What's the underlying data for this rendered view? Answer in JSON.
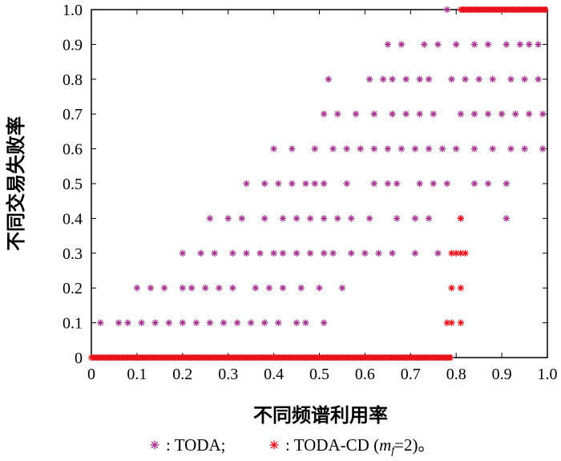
{
  "chart_data": {
    "type": "scatter",
    "xlabel": "不同频谱利用率",
    "ylabel": "不同交易失败率",
    "xlim": [
      0,
      1.0
    ],
    "ylim": [
      0,
      1.0
    ],
    "x_ticks": [
      "0",
      "0.1",
      "0.2",
      "0.3",
      "0.4",
      "0.5",
      "0.6",
      "0.7",
      "0.8",
      "0.9",
      "1.0"
    ],
    "y_ticks": [
      "0",
      "0.1",
      "0.2",
      "0.3",
      "0.4",
      "0.5",
      "0.6",
      "0.7",
      "0.8",
      "0.9",
      "1.0"
    ],
    "grid": false,
    "legend_position": "bottom",
    "series": [
      {
        "name": "TODA",
        "legend_label": ": TODA;",
        "marker": "asterisk",
        "color": "#a4348f",
        "points": [
          [
            0.78,
            1.0
          ],
          [
            0.65,
            0.9
          ],
          [
            0.68,
            0.9
          ],
          [
            0.73,
            0.9
          ],
          [
            0.76,
            0.9
          ],
          [
            0.8,
            0.9
          ],
          [
            0.84,
            0.9
          ],
          [
            0.87,
            0.9
          ],
          [
            0.91,
            0.9
          ],
          [
            0.94,
            0.9
          ],
          [
            0.96,
            0.9
          ],
          [
            0.98,
            0.9
          ],
          [
            0.52,
            0.8
          ],
          [
            0.61,
            0.8
          ],
          [
            0.64,
            0.8
          ],
          [
            0.66,
            0.8
          ],
          [
            0.69,
            0.8
          ],
          [
            0.72,
            0.8
          ],
          [
            0.74,
            0.8
          ],
          [
            0.79,
            0.8
          ],
          [
            0.82,
            0.8
          ],
          [
            0.85,
            0.8
          ],
          [
            0.88,
            0.8
          ],
          [
            0.92,
            0.8
          ],
          [
            0.95,
            0.8
          ],
          [
            0.98,
            0.8
          ],
          [
            0.51,
            0.7
          ],
          [
            0.54,
            0.7
          ],
          [
            0.58,
            0.7
          ],
          [
            0.62,
            0.7
          ],
          [
            0.66,
            0.7
          ],
          [
            0.69,
            0.7
          ],
          [
            0.72,
            0.7
          ],
          [
            0.75,
            0.7
          ],
          [
            0.81,
            0.7
          ],
          [
            0.84,
            0.7
          ],
          [
            0.87,
            0.7
          ],
          [
            0.9,
            0.7
          ],
          [
            0.93,
            0.7
          ],
          [
            0.96,
            0.7
          ],
          [
            0.99,
            0.7
          ],
          [
            0.4,
            0.6
          ],
          [
            0.44,
            0.6
          ],
          [
            0.49,
            0.6
          ],
          [
            0.53,
            0.6
          ],
          [
            0.56,
            0.6
          ],
          [
            0.59,
            0.6
          ],
          [
            0.62,
            0.6
          ],
          [
            0.65,
            0.6
          ],
          [
            0.68,
            0.6
          ],
          [
            0.71,
            0.6
          ],
          [
            0.74,
            0.6
          ],
          [
            0.77,
            0.6
          ],
          [
            0.8,
            0.6
          ],
          [
            0.84,
            0.6
          ],
          [
            0.88,
            0.6
          ],
          [
            0.92,
            0.6
          ],
          [
            0.95,
            0.6
          ],
          [
            0.99,
            0.6
          ],
          [
            0.34,
            0.5
          ],
          [
            0.38,
            0.5
          ],
          [
            0.41,
            0.5
          ],
          [
            0.44,
            0.5
          ],
          [
            0.47,
            0.5
          ],
          [
            0.49,
            0.5
          ],
          [
            0.51,
            0.5
          ],
          [
            0.56,
            0.5
          ],
          [
            0.62,
            0.5
          ],
          [
            0.65,
            0.5
          ],
          [
            0.67,
            0.5
          ],
          [
            0.72,
            0.5
          ],
          [
            0.75,
            0.5
          ],
          [
            0.78,
            0.5
          ],
          [
            0.84,
            0.5
          ],
          [
            0.87,
            0.5
          ],
          [
            0.91,
            0.5
          ],
          [
            0.26,
            0.4
          ],
          [
            0.3,
            0.4
          ],
          [
            0.33,
            0.4
          ],
          [
            0.38,
            0.4
          ],
          [
            0.42,
            0.4
          ],
          [
            0.45,
            0.4
          ],
          [
            0.48,
            0.4
          ],
          [
            0.51,
            0.4
          ],
          [
            0.54,
            0.4
          ],
          [
            0.57,
            0.4
          ],
          [
            0.61,
            0.4
          ],
          [
            0.67,
            0.4
          ],
          [
            0.71,
            0.4
          ],
          [
            0.74,
            0.4
          ],
          [
            0.81,
            0.4
          ],
          [
            0.91,
            0.4
          ],
          [
            0.2,
            0.3
          ],
          [
            0.24,
            0.3
          ],
          [
            0.27,
            0.3
          ],
          [
            0.31,
            0.3
          ],
          [
            0.34,
            0.3
          ],
          [
            0.37,
            0.3
          ],
          [
            0.4,
            0.3
          ],
          [
            0.42,
            0.3
          ],
          [
            0.45,
            0.3
          ],
          [
            0.48,
            0.3
          ],
          [
            0.51,
            0.3
          ],
          [
            0.53,
            0.3
          ],
          [
            0.57,
            0.3
          ],
          [
            0.6,
            0.3
          ],
          [
            0.63,
            0.3
          ],
          [
            0.66,
            0.3
          ],
          [
            0.71,
            0.3
          ],
          [
            0.76,
            0.3
          ],
          [
            0.1,
            0.2
          ],
          [
            0.13,
            0.2
          ],
          [
            0.16,
            0.2
          ],
          [
            0.2,
            0.2
          ],
          [
            0.22,
            0.2
          ],
          [
            0.25,
            0.2
          ],
          [
            0.28,
            0.2
          ],
          [
            0.31,
            0.2
          ],
          [
            0.36,
            0.2
          ],
          [
            0.39,
            0.2
          ],
          [
            0.42,
            0.2
          ],
          [
            0.46,
            0.2
          ],
          [
            0.5,
            0.2
          ],
          [
            0.55,
            0.2
          ],
          [
            0.02,
            0.1
          ],
          [
            0.06,
            0.1
          ],
          [
            0.08,
            0.1
          ],
          [
            0.11,
            0.1
          ],
          [
            0.14,
            0.1
          ],
          [
            0.17,
            0.1
          ],
          [
            0.2,
            0.1
          ],
          [
            0.23,
            0.1
          ],
          [
            0.26,
            0.1
          ],
          [
            0.29,
            0.1
          ],
          [
            0.32,
            0.1
          ],
          [
            0.35,
            0.1
          ],
          [
            0.38,
            0.1
          ],
          [
            0.41,
            0.1
          ],
          [
            0.45,
            0.1
          ],
          [
            0.47,
            0.1
          ],
          [
            0.51,
            0.1
          ]
        ]
      },
      {
        "name": "TODA-CD (mf=2)",
        "legend_label_main": ": TODA-CD (",
        "legend_label_m": "m",
        "legend_label_sub": "f",
        "legend_label_end": "=2)。",
        "marker": "asterisk",
        "color": "#e8141b",
        "points": [
          [
            0.81,
            0.4
          ],
          [
            0.79,
            0.3
          ],
          [
            0.8,
            0.3
          ],
          [
            0.81,
            0.3
          ],
          [
            0.82,
            0.3
          ],
          [
            0.79,
            0.2
          ],
          [
            0.81,
            0.2
          ],
          [
            0.78,
            0.1
          ],
          [
            0.79,
            0.1
          ],
          [
            0.81,
            0.1
          ]
        ],
        "runs": [
          {
            "y": 1.0,
            "x0": 0.81,
            "x1": 1.0
          },
          {
            "y": 0.0,
            "x0": 0.0,
            "x1": 0.79
          }
        ]
      }
    ]
  }
}
